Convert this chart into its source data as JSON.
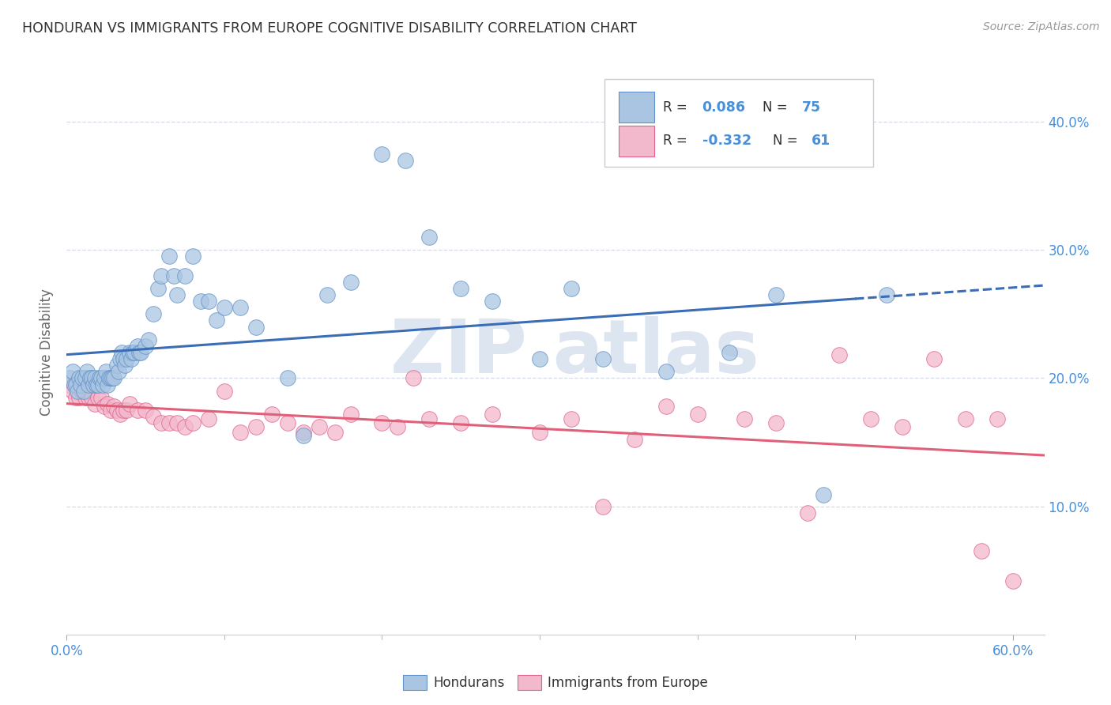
{
  "title": "HONDURAN VS IMMIGRANTS FROM EUROPE COGNITIVE DISABILITY CORRELATION CHART",
  "source": "Source: ZipAtlas.com",
  "ylabel": "Cognitive Disability",
  "xlim": [
    0.0,
    0.62
  ],
  "ylim": [
    0.0,
    0.44
  ],
  "ytick_labels_right": [
    "10.0%",
    "20.0%",
    "30.0%",
    "40.0%"
  ],
  "ytick_vals_right": [
    0.1,
    0.2,
    0.3,
    0.4
  ],
  "blue_R": 0.086,
  "blue_N": 75,
  "pink_R": -0.332,
  "pink_N": 61,
  "blue_color": "#aac5e2",
  "pink_color": "#f2b8cb",
  "blue_edge_color": "#6090c8",
  "pink_edge_color": "#e06090",
  "blue_line_color": "#3a6db5",
  "pink_line_color": "#e0607a",
  "background_color": "#ffffff",
  "grid_color": "#d5dce8",
  "title_color": "#333333",
  "source_color": "#999999",
  "watermark_color": "#dde5f0",
  "blue_x": [
    0.002,
    0.004,
    0.005,
    0.006,
    0.007,
    0.008,
    0.009,
    0.01,
    0.011,
    0.012,
    0.013,
    0.014,
    0.015,
    0.016,
    0.017,
    0.018,
    0.019,
    0.02,
    0.021,
    0.022,
    0.023,
    0.024,
    0.025,
    0.026,
    0.027,
    0.028,
    0.029,
    0.03,
    0.032,
    0.033,
    0.034,
    0.035,
    0.036,
    0.037,
    0.038,
    0.04,
    0.041,
    0.042,
    0.043,
    0.045,
    0.046,
    0.047,
    0.05,
    0.052,
    0.055,
    0.058,
    0.06,
    0.065,
    0.068,
    0.07,
    0.075,
    0.08,
    0.085,
    0.09,
    0.095,
    0.1,
    0.11,
    0.12,
    0.14,
    0.15,
    0.165,
    0.18,
    0.2,
    0.215,
    0.23,
    0.25,
    0.27,
    0.3,
    0.32,
    0.34,
    0.38,
    0.42,
    0.45,
    0.48,
    0.52
  ],
  "blue_y": [
    0.2,
    0.205,
    0.195,
    0.195,
    0.19,
    0.2,
    0.195,
    0.2,
    0.19,
    0.2,
    0.205,
    0.195,
    0.2,
    0.2,
    0.195,
    0.2,
    0.195,
    0.195,
    0.2,
    0.2,
    0.195,
    0.2,
    0.205,
    0.195,
    0.2,
    0.2,
    0.2,
    0.2,
    0.21,
    0.205,
    0.215,
    0.22,
    0.215,
    0.21,
    0.215,
    0.22,
    0.215,
    0.22,
    0.22,
    0.225,
    0.22,
    0.22,
    0.225,
    0.23,
    0.25,
    0.27,
    0.28,
    0.295,
    0.28,
    0.265,
    0.28,
    0.295,
    0.26,
    0.26,
    0.245,
    0.255,
    0.255,
    0.24,
    0.2,
    0.155,
    0.265,
    0.275,
    0.375,
    0.37,
    0.31,
    0.27,
    0.26,
    0.215,
    0.27,
    0.215,
    0.205,
    0.22,
    0.265,
    0.109,
    0.265
  ],
  "pink_x": [
    0.002,
    0.004,
    0.006,
    0.008,
    0.01,
    0.012,
    0.014,
    0.016,
    0.018,
    0.02,
    0.022,
    0.024,
    0.026,
    0.028,
    0.03,
    0.032,
    0.034,
    0.036,
    0.038,
    0.04,
    0.045,
    0.05,
    0.055,
    0.06,
    0.065,
    0.07,
    0.075,
    0.08,
    0.09,
    0.1,
    0.11,
    0.12,
    0.13,
    0.14,
    0.15,
    0.16,
    0.17,
    0.18,
    0.2,
    0.21,
    0.22,
    0.23,
    0.25,
    0.27,
    0.3,
    0.32,
    0.34,
    0.36,
    0.38,
    0.4,
    0.43,
    0.45,
    0.47,
    0.49,
    0.51,
    0.53,
    0.55,
    0.57,
    0.58,
    0.59,
    0.6
  ],
  "pink_y": [
    0.195,
    0.19,
    0.185,
    0.185,
    0.19,
    0.185,
    0.185,
    0.185,
    0.18,
    0.185,
    0.185,
    0.178,
    0.18,
    0.175,
    0.178,
    0.175,
    0.172,
    0.175,
    0.175,
    0.18,
    0.175,
    0.175,
    0.17,
    0.165,
    0.165,
    0.165,
    0.162,
    0.165,
    0.168,
    0.19,
    0.158,
    0.162,
    0.172,
    0.165,
    0.158,
    0.162,
    0.158,
    0.172,
    0.165,
    0.162,
    0.2,
    0.168,
    0.165,
    0.172,
    0.158,
    0.168,
    0.1,
    0.152,
    0.178,
    0.172,
    0.168,
    0.165,
    0.095,
    0.218,
    0.168,
    0.162,
    0.215,
    0.168,
    0.065,
    0.168,
    0.042
  ]
}
